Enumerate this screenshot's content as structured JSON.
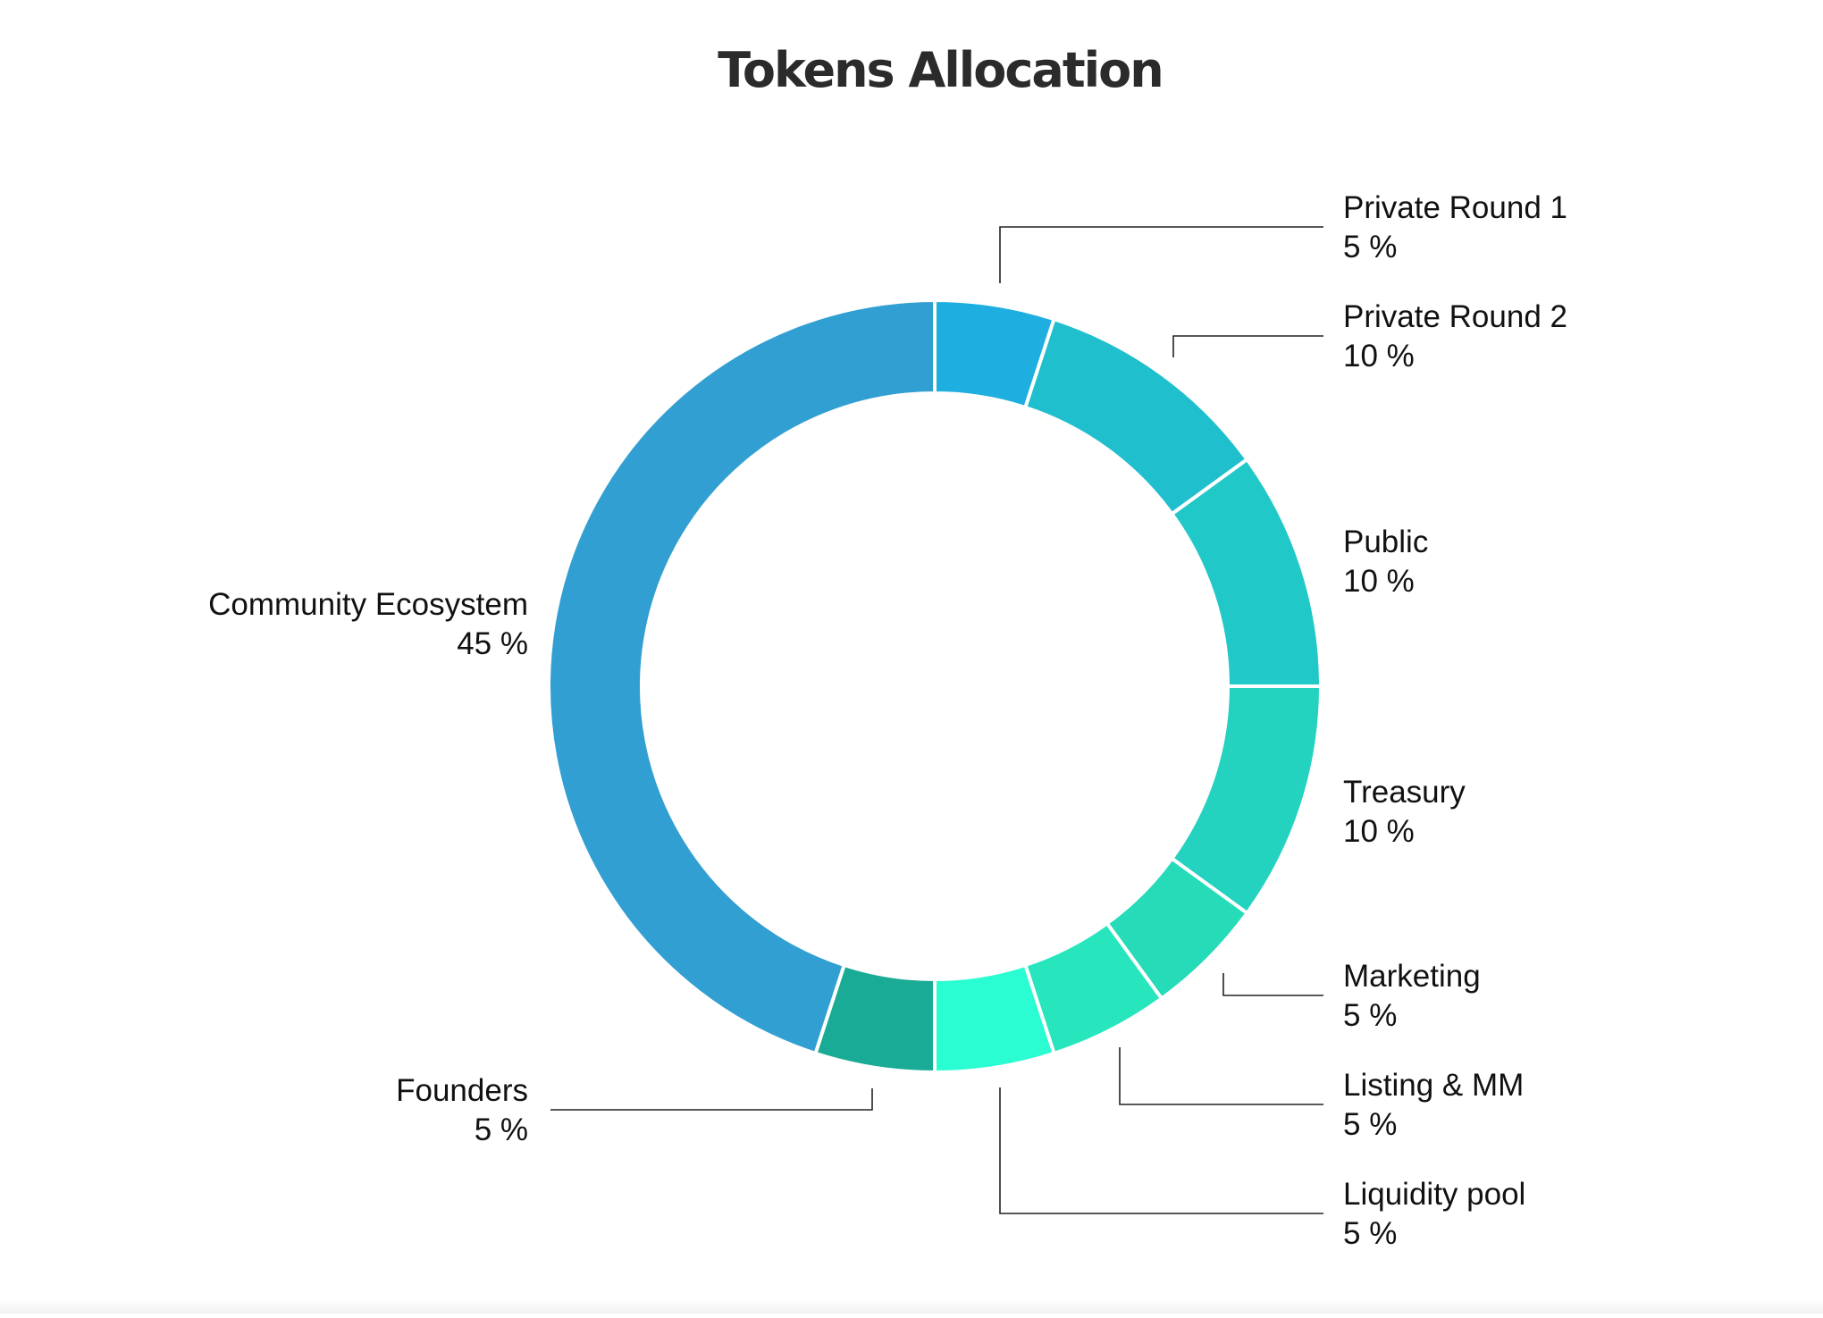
{
  "chart_data": {
    "type": "pie",
    "variant": "donut",
    "title": "Tokens Allocation",
    "unit": "%",
    "start_angle_deg": 0,
    "direction": "clockwise",
    "slices": [
      {
        "name": "Private Round 1",
        "value": 5,
        "value_label": "5 %",
        "color": "#1eaee0"
      },
      {
        "name": "Private Round 2",
        "value": 10,
        "value_label": "10 %",
        "color": "#20bfce"
      },
      {
        "name": "Public",
        "value": 10,
        "value_label": "10 %",
        "color": "#21c8c8"
      },
      {
        "name": "Treasury",
        "value": 10,
        "value_label": "10 %",
        "color": "#23d2bf"
      },
      {
        "name": "Marketing",
        "value": 5,
        "value_label": "5 %",
        "color": "#25dbb8"
      },
      {
        "name": "Listing & MM",
        "value": 5,
        "value_label": "5 %",
        "color": "#27e6bd"
      },
      {
        "name": "Liquidity pool",
        "value": 5,
        "value_label": "5 %",
        "color": "#2afdd2"
      },
      {
        "name": "Founders",
        "value": 5,
        "value_label": "5 %",
        "color": "#1aab96"
      },
      {
        "name": "Community Ecosystem",
        "value": 45,
        "value_label": "45 %",
        "color": "#319fd2"
      }
    ]
  }
}
